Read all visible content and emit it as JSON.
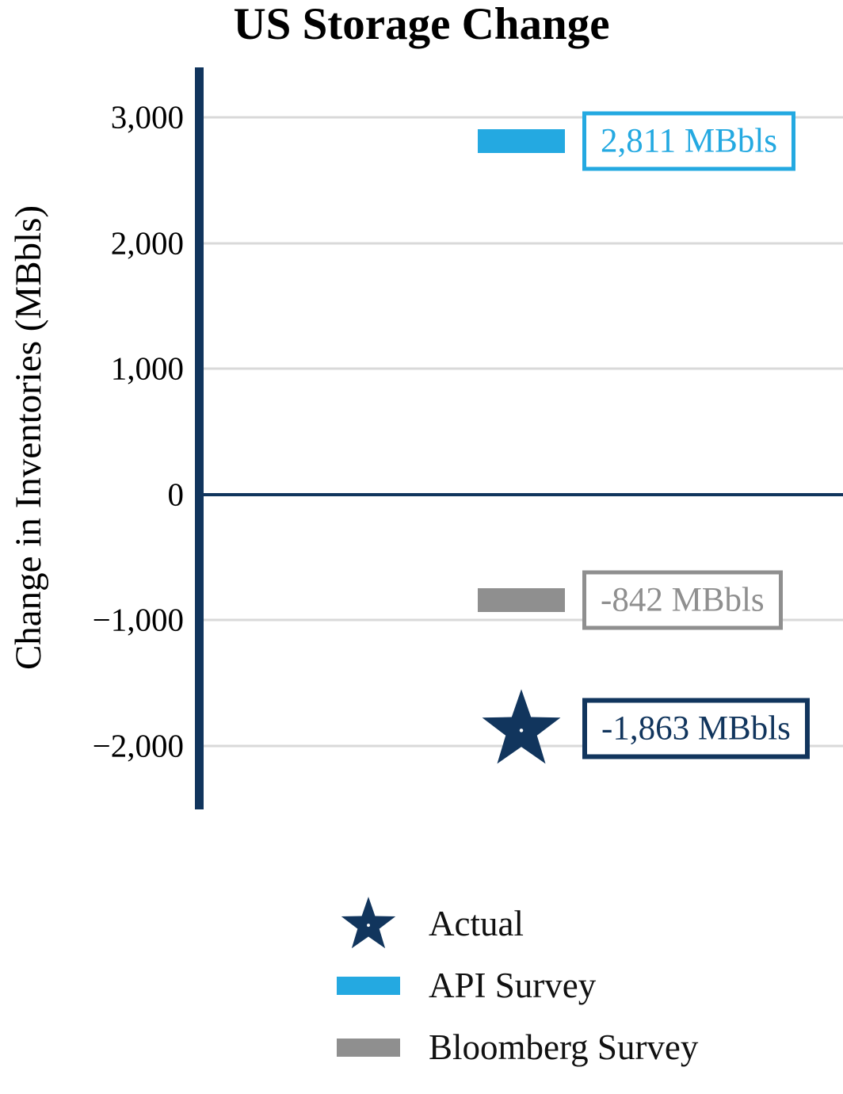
{
  "chart_data": {
    "type": "bar",
    "title": "US Storage Change",
    "ylabel": "Change in Inventories (MBbls)",
    "unit": "MBbls",
    "ylim": [
      -2500,
      3400
    ],
    "grid": true,
    "legend_position": "bottom",
    "yticks": [
      {
        "value": 3000,
        "label": "3,000"
      },
      {
        "value": 2000,
        "label": "2,000"
      },
      {
        "value": 1000,
        "label": "1,000"
      },
      {
        "value": 0,
        "label": "0"
      },
      {
        "value": -1000,
        "label": "−1,000"
      },
      {
        "value": -2000,
        "label": "−2,000"
      }
    ],
    "series": [
      {
        "name": "API Survey",
        "marker": "bar",
        "value": 2811,
        "label": "2,811 MBbls",
        "color": "#24a9e1"
      },
      {
        "name": "Bloomberg Survey",
        "marker": "bar",
        "value": -842,
        "label": "-842 MBbls",
        "color": "#8f8f8f"
      },
      {
        "name": "Actual",
        "marker": "star",
        "value": -1863,
        "label": "-1,863 MBbls",
        "color": "#11355d"
      }
    ],
    "legend": [
      {
        "label": "Actual",
        "marker": "star"
      },
      {
        "label": "API Survey",
        "marker": "bar"
      },
      {
        "label": "Bloomberg Survey",
        "marker": "bar"
      }
    ]
  },
  "colors": {
    "navy": "#11355d",
    "light_blue": "#24a9e1",
    "gray": "#8f8f8f",
    "gridline": "#d9d9d9",
    "background": "#ffffff",
    "legend_text": "#111111"
  }
}
